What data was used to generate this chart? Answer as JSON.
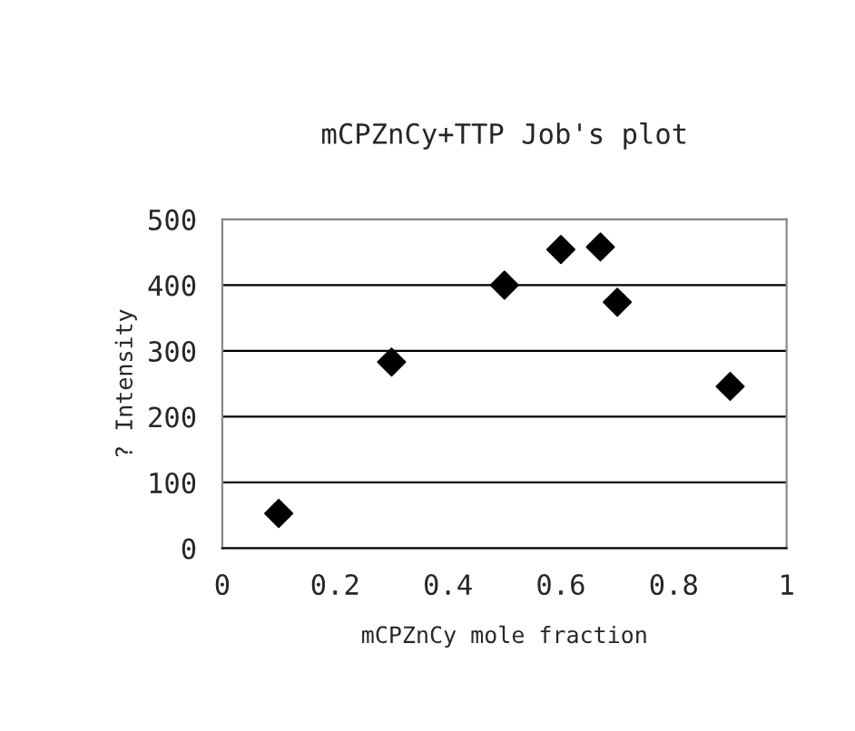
{
  "chart_data": {
    "type": "scatter",
    "title": "mCPZnCy+TTP Job's plot",
    "xlabel": "mCPZnCy mole fraction",
    "ylabel": "? Intensity",
    "x": [
      0.1,
      0.3,
      0.5,
      0.6,
      0.67,
      0.7,
      0.9
    ],
    "series": [
      {
        "color": "#000000",
        "values": [
          53,
          283,
          400,
          454,
          458,
          374,
          246
        ]
      }
    ],
    "xlim": [
      0,
      1
    ],
    "ylim": [
      0,
      500
    ],
    "xticks": [
      0,
      0.2,
      0.4,
      0.6,
      0.8,
      1
    ],
    "yticks": [
      0,
      100,
      200,
      300,
      400,
      500
    ],
    "grid": "y",
    "marker": "diamond"
  }
}
